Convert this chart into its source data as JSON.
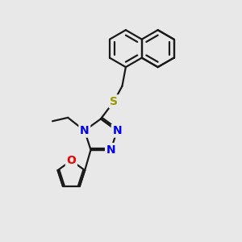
{
  "bg_color": "#e8e8e8",
  "bond_color": "#1a1a1a",
  "bond_width": 1.6,
  "atom_colors": {
    "N": "#0000ee",
    "O": "#ee0000",
    "S": "#999900",
    "C": "#1a1a1a"
  },
  "fig_size": [
    3.0,
    3.0
  ],
  "dpi": 100
}
